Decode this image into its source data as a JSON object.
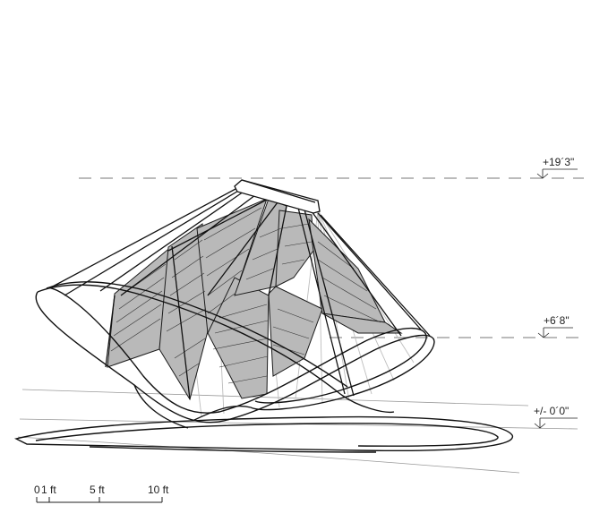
{
  "levels": [
    {
      "label": "+19´3\""
    },
    {
      "label": "+6´8\""
    },
    {
      "label": "+/- 0´0\""
    }
  ],
  "scale_bar": {
    "labels": [
      "0",
      "1 ft",
      "5 ft",
      "10 ft"
    ]
  }
}
